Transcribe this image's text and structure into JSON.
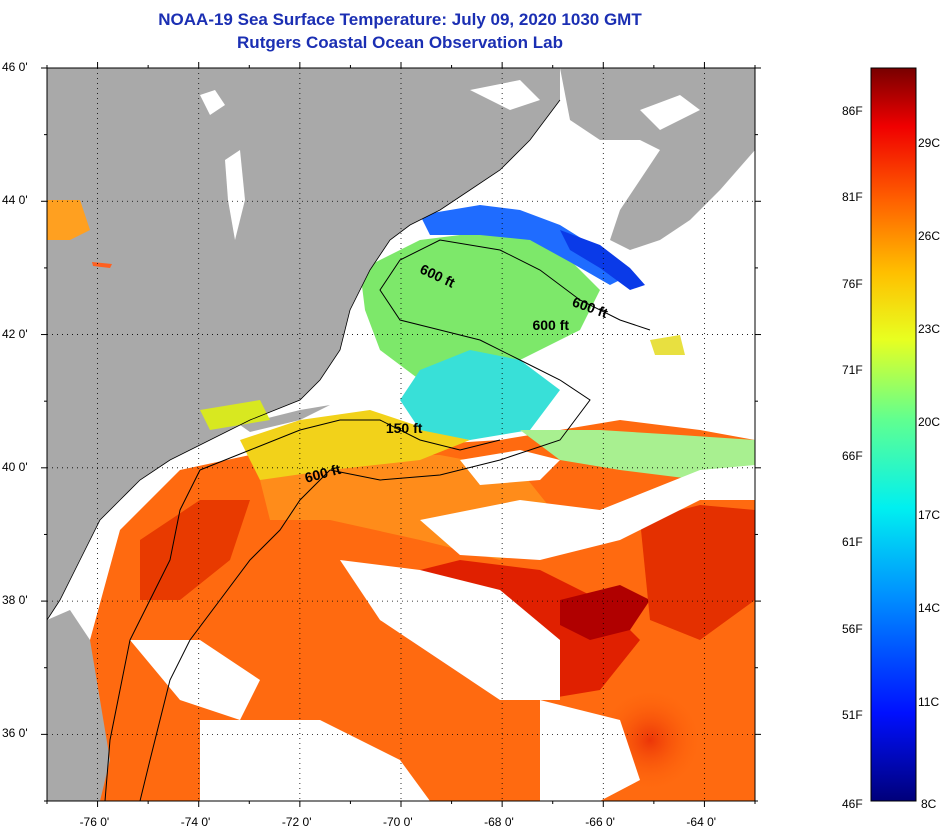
{
  "title": "NOAA-19 Sea Surface Temperature:  July 09, 2020 1030 GMT",
  "subtitle": "Rutgers Coastal Ocean Observation Lab",
  "lon_ticks": [
    "-76 0'",
    "-74 0'",
    "-72 0'",
    "-70 0'",
    "-68 0'",
    "-66 0'",
    "-64 0'"
  ],
  "lat_ticks": [
    "46 0'",
    "44 0'",
    "42 0'",
    "40 0'",
    "38 0'",
    "36 0'"
  ],
  "legend": {
    "fahrenheit": [
      "86F",
      "81F",
      "76F",
      "71F",
      "66F",
      "61F",
      "56F",
      "51F",
      "46F"
    ],
    "celsius": [
      "29C",
      "26C",
      "23C",
      "20C",
      "17C",
      "14C",
      "11C",
      "8C"
    ]
  },
  "contours": [
    {
      "label": "600 ft",
      "lon": -69.6,
      "lat": 43.0,
      "rotate": 25
    },
    {
      "label": "600 ft",
      "lon": -66.6,
      "lat": 42.5,
      "rotate": 20
    },
    {
      "label": "600 ft",
      "lon": -67.4,
      "lat": 42.15,
      "rotate": 0
    },
    {
      "label": "150 ft",
      "lon": -70.3,
      "lat": 40.6,
      "rotate": 0
    },
    {
      "label": "600 ft",
      "lon": -71.9,
      "lat": 39.85,
      "rotate": -15
    }
  ],
  "colors": {
    "title": "#1b2fb3",
    "land": "#a9a9a9",
    "cloud": "#ffffff"
  }
}
